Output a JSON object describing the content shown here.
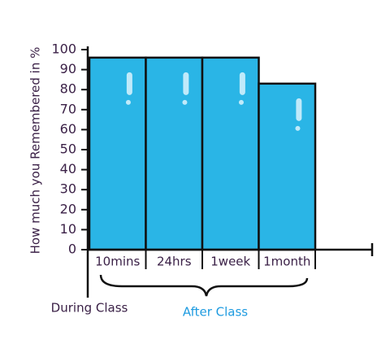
{
  "chart_data": {
    "type": "bar",
    "y_label": "How much you Remembered in %",
    "categories": [
      "10mins",
      "24hrs",
      "1week",
      "1month"
    ],
    "values": [
      96,
      96,
      96,
      83
    ],
    "color": "#2ab5e6",
    "ylim": [
      0,
      100
    ],
    "yticks": [
      0,
      10,
      20,
      30,
      40,
      50,
      60,
      70,
      80,
      90,
      100
    ],
    "annotations": [
      "During Class",
      "After Class"
    ]
  }
}
